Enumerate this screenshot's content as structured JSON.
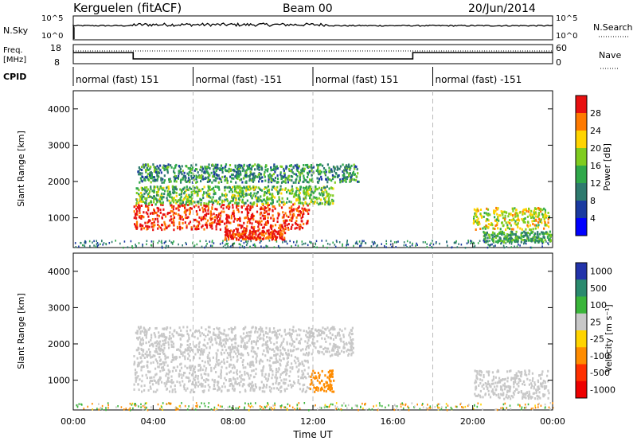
{
  "header": {
    "station": "Kerguelen (fitACF)",
    "beam": "Beam 00",
    "date": "20/Jun/2014"
  },
  "nsky_panel": {
    "label": "N.Sky",
    "right_label": "N.Search",
    "ticks_left": [
      "10^5",
      "10^0"
    ],
    "ticks_right": [
      "10^5",
      "10^0"
    ]
  },
  "freq_panel": {
    "label_line1": "Freq.",
    "label_line2": "[MHz]",
    "right_label": "Nave",
    "ticks_left": [
      "18",
      "8"
    ],
    "ticks_right": [
      "60",
      "0"
    ]
  },
  "cpid": {
    "label": "CPID",
    "segments": [
      {
        "label": "normal (fast) 151",
        "start": 0,
        "end": 6
      },
      {
        "label": "normal (fast) -151",
        "start": 6,
        "end": 12
      },
      {
        "label": "normal (fast) 151",
        "start": 12,
        "end": 18
      },
      {
        "label": "normal (fast) -151",
        "start": 18,
        "end": 24
      }
    ]
  },
  "power_scale": {
    "label": "Power [dB]",
    "ticks": [
      "28",
      "24",
      "20",
      "16",
      "12",
      "8",
      "4"
    ],
    "colors": [
      "#e81010",
      "#ff7a00",
      "#ffd400",
      "#7fcc1f",
      "#2fa84a",
      "#2e7a6e",
      "#1a3aa0",
      "#0000ff"
    ]
  },
  "velocity_scale": {
    "label": "Velocity [m s⁻¹]",
    "ticks": [
      "1000",
      "500",
      "100",
      "25",
      "-25",
      "-100",
      "-500",
      "-1000"
    ],
    "colors": [
      "#2233aa",
      "#2a8a6e",
      "#3ab53a",
      "#c8c8c8",
      "#ffd400",
      "#ff8c00",
      "#ff3000",
      "#ee0000"
    ]
  },
  "chart_data": [
    {
      "type": "heatmap",
      "title": "Power",
      "ylabel": "Slant Range [km]",
      "xlabel": "Time UT",
      "x_ticks": [
        "00:00",
        "04:00",
        "08:00",
        "12:00",
        "16:00",
        "20:00",
        "00:00"
      ],
      "y_ticks": [
        "1000",
        "2000",
        "3000",
        "4000"
      ],
      "xlim_hours": [
        0,
        24
      ],
      "ylim_km": [
        180,
        4500
      ],
      "echo_bands": [
        {
          "start_h": 3.0,
          "end_h": 11.8,
          "range_km": [
            700,
            1400
          ],
          "power_db": 28
        },
        {
          "start_h": 3.1,
          "end_h": 13.0,
          "range_km": [
            1400,
            1900
          ],
          "power_db": 14
        },
        {
          "start_h": 3.2,
          "end_h": 14.3,
          "range_km": [
            2000,
            2500
          ],
          "power_db": 10
        },
        {
          "start_h": 7.5,
          "end_h": 10.6,
          "range_km": [
            420,
            700
          ],
          "power_db": 28
        },
        {
          "start_h": 20.0,
          "end_h": 23.8,
          "range_km": [
            700,
            1300
          ],
          "power_db": 18
        },
        {
          "start_h": 20.5,
          "end_h": 23.9,
          "range_km": [
            350,
            650
          ],
          "power_db": 12
        }
      ],
      "grid": false
    },
    {
      "type": "heatmap",
      "title": "Velocity",
      "ylabel": "Slant Range [km]",
      "xlabel": "Time UT",
      "x_ticks": [
        "00:00",
        "04:00",
        "08:00",
        "12:00",
        "16:00",
        "20:00",
        "00:00"
      ],
      "y_ticks": [
        "1000",
        "2000",
        "3000",
        "4000"
      ],
      "xlim_hours": [
        0,
        24
      ],
      "ylim_km": [
        180,
        4500
      ],
      "echo_bands": [
        {
          "start_h": 3.0,
          "end_h": 11.8,
          "range_km": [
            700,
            1700
          ],
          "velocity_ms": 0
        },
        {
          "start_h": 3.1,
          "end_h": 14.0,
          "range_km": [
            1700,
            2500
          ],
          "velocity_ms": 0
        },
        {
          "start_h": 11.8,
          "end_h": 13.0,
          "range_km": [
            700,
            1300
          ],
          "velocity_ms": -100
        },
        {
          "start_h": 20.0,
          "end_h": 23.8,
          "range_km": [
            500,
            1300
          ],
          "velocity_ms": 0
        }
      ],
      "grid": false
    }
  ],
  "axis": {
    "xlabel": "Time UT"
  }
}
